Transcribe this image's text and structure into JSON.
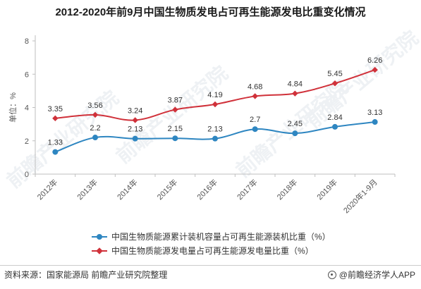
{
  "chart_data": {
    "type": "line",
    "title": "2012-2020年前9月中国生物质发电占可再生能源发电比重变化情况",
    "ylabel": "单位：%",
    "xlabel": "",
    "categories": [
      "2012年",
      "2013年",
      "2014年",
      "2015年",
      "2016年",
      "2017年",
      "2018年",
      "2019年",
      "2020年1-9月"
    ],
    "ylim": [
      0,
      8
    ],
    "yticks": [
      0,
      2,
      4,
      6,
      8
    ],
    "grid": false,
    "legend_position": "bottom",
    "series": [
      {
        "name": "中国生物质能源累计装机容量占可再生能源装机比重（%）",
        "color": "#2e86c1",
        "marker": "circle",
        "values": [
          1.33,
          2.2,
          2.13,
          2.15,
          2.13,
          2.7,
          2.45,
          2.84,
          3.13
        ],
        "labels": [
          "1.33",
          "2.2",
          "2.13",
          "2.15",
          "2.13",
          "2.7",
          "2.45",
          "2.84",
          "3.13"
        ]
      },
      {
        "name": "中国生物质能源发电量占可再生能源发电量比重（%）",
        "color": "#d0313a",
        "marker": "diamond",
        "values": [
          3.35,
          3.56,
          3.24,
          3.87,
          4.19,
          4.68,
          4.84,
          5.45,
          6.26
        ],
        "labels": [
          "3.35",
          "3.56",
          "3.24",
          "3.87",
          "4.19",
          "4.68",
          "4.84",
          "5.45",
          "6.26"
        ]
      }
    ]
  },
  "footer": {
    "source": "资料来源：国家能源局 前瞻产业研究院整理",
    "brand": "@前瞻经济学人APP"
  },
  "watermark": {
    "text": "前瞻产业研究院"
  }
}
